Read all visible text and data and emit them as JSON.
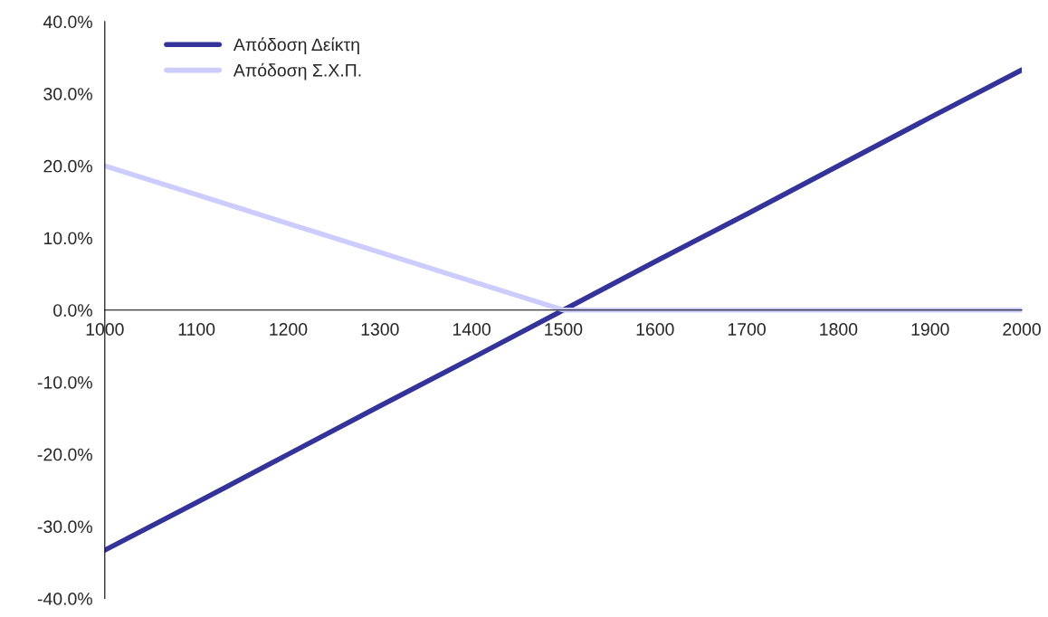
{
  "chart_data": {
    "type": "line",
    "x": [
      1000,
      1100,
      1200,
      1300,
      1400,
      1500,
      1600,
      1700,
      1800,
      1900,
      2000
    ],
    "series": [
      {
        "name": "Απόδοση Δείκτη",
        "color": "#333399",
        "values": [
          -33.3,
          -26.7,
          -20.0,
          -13.3,
          -6.7,
          0,
          6.7,
          13.3,
          20.0,
          26.7,
          33.3
        ]
      },
      {
        "name": "Απόδοση Σ.Χ.Π.",
        "color": "#ccccff",
        "values": [
          20.0,
          16.0,
          12.0,
          8.0,
          4.0,
          0,
          0,
          0,
          0,
          0,
          0
        ]
      }
    ],
    "xlim": [
      1000,
      2000
    ],
    "xticks": [
      1000,
      1100,
      1200,
      1300,
      1400,
      1500,
      1600,
      1700,
      1800,
      1900,
      2000
    ],
    "ylim": [
      -40,
      40
    ],
    "yticks": [
      {
        "value": -40,
        "label": "-40.0%"
      },
      {
        "value": -30,
        "label": "-30.0%"
      },
      {
        "value": -20,
        "label": "-20.0%"
      },
      {
        "value": -10,
        "label": "-10.0%"
      },
      {
        "value": 0,
        "label": "0.0%"
      },
      {
        "value": 10,
        "label": "10.0%"
      },
      {
        "value": 20,
        "label": "20.0%"
      },
      {
        "value": 30,
        "label": "30.0%"
      },
      {
        "value": 40,
        "label": "40.0%"
      }
    ],
    "grid": false,
    "legend": "top left",
    "marker": "none",
    "line_style": "solid"
  }
}
